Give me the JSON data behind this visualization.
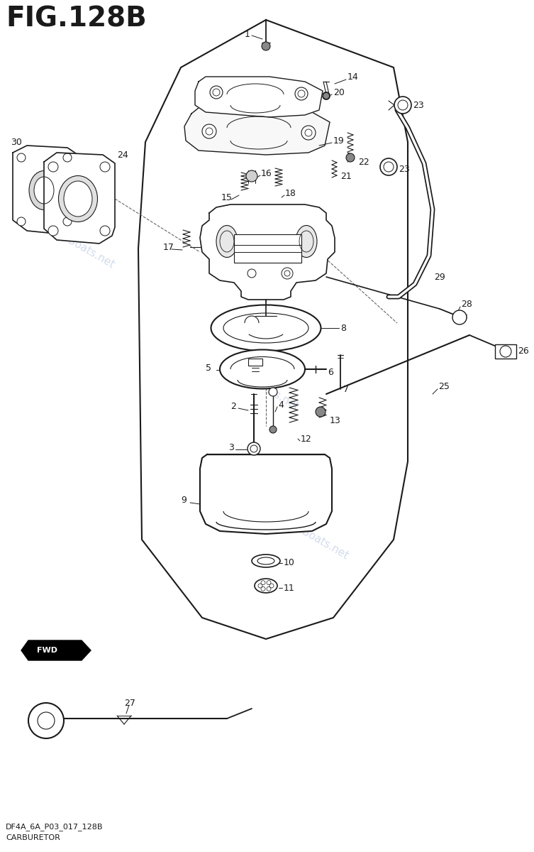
{
  "title": "FIG.128B",
  "subtitle1": "DF4A_6A_P03_017_128B",
  "subtitle2": "CARBURETOR",
  "bg_color": "#ffffff",
  "line_color": "#1a1a1a",
  "fig_width": 7.53,
  "fig_height": 12.0
}
